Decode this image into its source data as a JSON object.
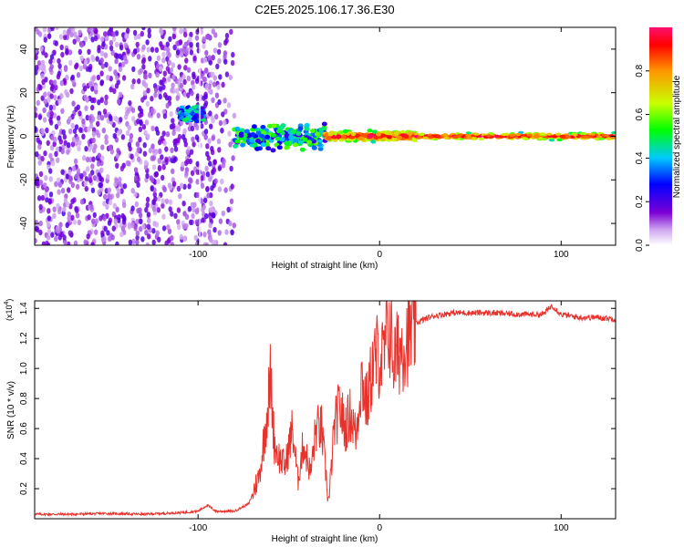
{
  "figure_title": "C2E5.2025.106.17.36.E30",
  "chart_data": [
    {
      "type": "heatmap",
      "title": "",
      "xlabel": "Height of straight line (km)",
      "ylabel": "Frequency (Hz)",
      "xlim": [
        -190,
        130
      ],
      "ylim": [
        -50,
        50
      ],
      "x_ticks": [
        -100,
        0,
        100
      ],
      "y_ticks": [
        -40,
        -20,
        0,
        20,
        40
      ],
      "x_tick_labels": [
        "-100",
        "0",
        "100"
      ],
      "y_tick_labels": [
        "-40",
        "-20",
        "0",
        "20",
        "40"
      ],
      "colorbar": {
        "label": "Normalized spectral amplitude",
        "range": [
          0,
          1
        ],
        "ticks": [
          0.0,
          0.2,
          0.4,
          0.6,
          0.8
        ],
        "tick_labels": [
          "0.0",
          "0.2",
          "0.4",
          "0.6",
          "0.8"
        ],
        "colormap": [
          "#ffffff",
          "#7b00d6",
          "#0000ff",
          "#00c8ff",
          "#00ff00",
          "#c8ff00",
          "#ff9600",
          "#ff0000",
          "#ff1070"
        ]
      },
      "regions": [
        {
          "x_range": [
            -190,
            -80
          ],
          "description": "broadband noise",
          "frequency_span": [
            -50,
            50
          ],
          "amplitude": [
            0.05,
            0.2
          ]
        },
        {
          "x_range": [
            -110,
            -97
          ],
          "description": "burst near 10 Hz",
          "frequency_center": 10,
          "amplitude": [
            0.2,
            0.5
          ]
        },
        {
          "x_range": [
            -80,
            -30
          ],
          "description": "band around 0 Hz",
          "frequency_span": [
            -8,
            8
          ],
          "amplitude": [
            0.2,
            0.6
          ]
        },
        {
          "x_range": [
            -30,
            20
          ],
          "description": "narrow line at 0 Hz",
          "frequency_span": [
            -3,
            3
          ],
          "amplitude": [
            0.5,
            0.95
          ]
        },
        {
          "x_range": [
            20,
            130
          ],
          "description": "steady line at 0 Hz",
          "frequency_span": [
            -2,
            2
          ],
          "amplitude": [
            0.5,
            0.95
          ]
        }
      ]
    },
    {
      "type": "line",
      "title": "",
      "xlabel": "Height of straight line (km)",
      "ylabel": "SNR (10 * v/v)",
      "y_multiplier_label": "(x10",
      "y_multiplier_exponent": "4",
      "y_multiplier_suffix": ")",
      "xlim": [
        -190,
        130
      ],
      "ylim": [
        0,
        1.45
      ],
      "x_ticks": [
        -100,
        0,
        100
      ],
      "x_tick_labels": [
        "-100",
        "0",
        "100"
      ],
      "y_ticks": [
        0.2,
        0.4,
        0.6,
        0.8,
        1.0,
        1.2,
        1.4
      ],
      "y_tick_labels": [
        "0.2",
        "0.4",
        "0.6",
        "0.8",
        "1.0",
        "1.2",
        "1.4"
      ],
      "series": [
        {
          "color": "#e8322c",
          "x": [
            -190,
            -170,
            -150,
            -130,
            -110,
            -100,
            -95,
            -90,
            -80,
            -72,
            -66,
            -62,
            -60,
            -58,
            -55,
            -52,
            -48,
            -45,
            -42,
            -38,
            -35,
            -32,
            -28,
            -25,
            -22,
            -19,
            -16,
            -13,
            -10,
            -7,
            -4,
            -1,
            2,
            5,
            8,
            12,
            16,
            20,
            25,
            30,
            40,
            60,
            80,
            90,
            95,
            100,
            110,
            120,
            130
          ],
          "values": [
            0.03,
            0.03,
            0.035,
            0.03,
            0.04,
            0.05,
            0.09,
            0.05,
            0.05,
            0.1,
            0.3,
            0.7,
            0.95,
            0.5,
            0.4,
            0.35,
            0.6,
            0.25,
            0.5,
            0.3,
            0.6,
            0.6,
            0.1,
            0.6,
            0.75,
            0.6,
            0.7,
            0.55,
            0.95,
            0.75,
            1.0,
            1.1,
            1.05,
            1.3,
            1.05,
            1.15,
            1.22,
            1.3,
            1.33,
            1.35,
            1.37,
            1.37,
            1.36,
            1.36,
            1.42,
            1.36,
            1.34,
            1.34,
            1.33
          ]
        }
      ]
    }
  ]
}
